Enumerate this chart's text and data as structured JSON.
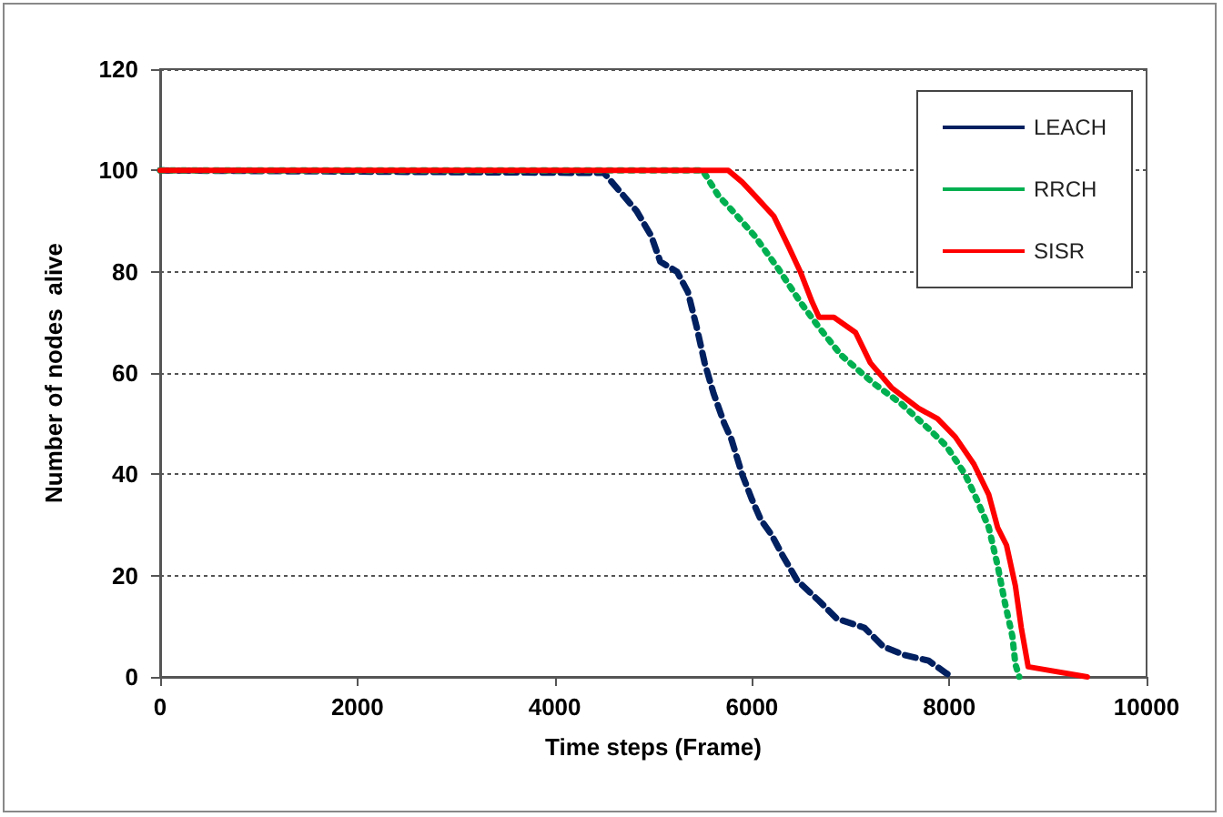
{
  "chart_data": {
    "type": "line",
    "xlabel": "Time steps (Frame)",
    "ylabel": "Number of nodes  alive",
    "xlim": [
      0,
      10000
    ],
    "xticks": [
      0,
      2000,
      4000,
      6000,
      8000,
      10000
    ],
    "ylim": [
      0,
      120
    ],
    "yticks": [
      0,
      20,
      40,
      60,
      80,
      100,
      120
    ],
    "grid": "y",
    "legend": "top right",
    "marker": "none",
    "series": [
      {
        "name": "LEACH",
        "color": "#002060",
        "line_style": "dashed",
        "x": [
          0,
          4500,
          4830,
          4980,
          5070,
          5240,
          5350,
          5440,
          5520,
          5610,
          5720,
          5790,
          5900,
          6000,
          6090,
          6200,
          6310,
          6460,
          6680,
          6860,
          7140,
          7330,
          7550,
          7790,
          7970,
          8030
        ],
        "values": [
          100,
          99.5,
          92,
          87,
          82,
          80,
          76,
          69,
          62,
          56,
          50,
          47,
          40,
          35,
          31,
          28,
          24,
          19,
          15,
          11.5,
          9.7,
          6,
          4.3,
          3.2,
          0.7,
          0
        ]
      },
      {
        "name": "RRCH",
        "color": "#00b050",
        "line_style": "dotted",
        "x": [
          0,
          5500,
          5660,
          5850,
          6030,
          6270,
          6490,
          6680,
          6900,
          7230,
          7510,
          7790,
          7970,
          8160,
          8280,
          8400,
          8490,
          8560,
          8640,
          8670,
          8710
        ],
        "values": [
          100,
          100,
          95,
          91,
          87,
          80.5,
          74,
          69,
          63.6,
          58,
          54,
          49,
          45.6,
          40,
          35,
          29.5,
          22,
          15,
          8,
          2.5,
          0
        ]
      },
      {
        "name": "SISR",
        "color": "#ff0000",
        "line_style": "solid",
        "x": [
          0,
          5760,
          5900,
          6030,
          6220,
          6370,
          6490,
          6610,
          6680,
          6830,
          7050,
          7200,
          7420,
          7690,
          7880,
          8060,
          8250,
          8400,
          8490,
          8580,
          8670,
          8730,
          8800,
          9400
        ],
        "values": [
          100,
          100,
          97.7,
          95,
          91,
          85,
          80,
          74,
          71,
          71,
          68,
          62,
          57,
          53,
          51,
          47.4,
          42,
          36,
          29.5,
          26,
          18,
          9.7,
          2,
          0
        ]
      }
    ]
  }
}
